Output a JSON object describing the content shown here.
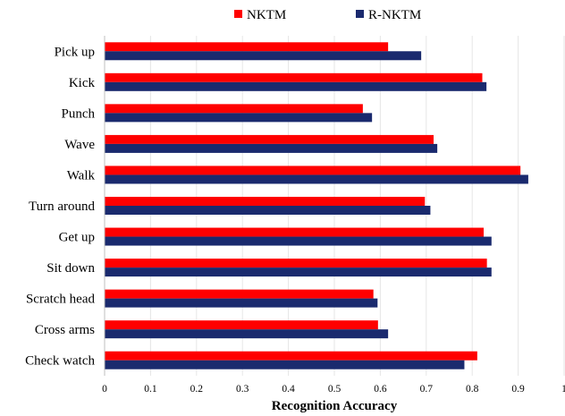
{
  "chart_data": {
    "type": "bar",
    "orientation": "horizontal",
    "categories": [
      "Pick up",
      "Kick",
      "Punch",
      "Wave",
      "Walk",
      "Turn around",
      "Get up",
      "Sit down",
      "Scratch head",
      "Cross arms",
      "Check watch"
    ],
    "series": [
      {
        "name": "NKTM",
        "color": "#ff0000",
        "values": [
          0.617,
          0.822,
          0.562,
          0.716,
          0.905,
          0.697,
          0.825,
          0.832,
          0.585,
          0.595,
          0.811
        ]
      },
      {
        "name": "R-NKTM",
        "color": "#1a2a6e",
        "values": [
          0.689,
          0.831,
          0.582,
          0.724,
          0.922,
          0.709,
          0.842,
          0.842,
          0.594,
          0.617,
          0.783
        ]
      }
    ],
    "xlabel": "Recognition Accuracy",
    "ylabel": "",
    "xlim": [
      0,
      1
    ],
    "xticks": [
      "0",
      "0.1",
      "0.2",
      "0.3",
      "0.4",
      "0.5",
      "0.6",
      "0.7",
      "0.8",
      "0.9",
      "1"
    ],
    "grid": "vertical",
    "legend": "top"
  }
}
